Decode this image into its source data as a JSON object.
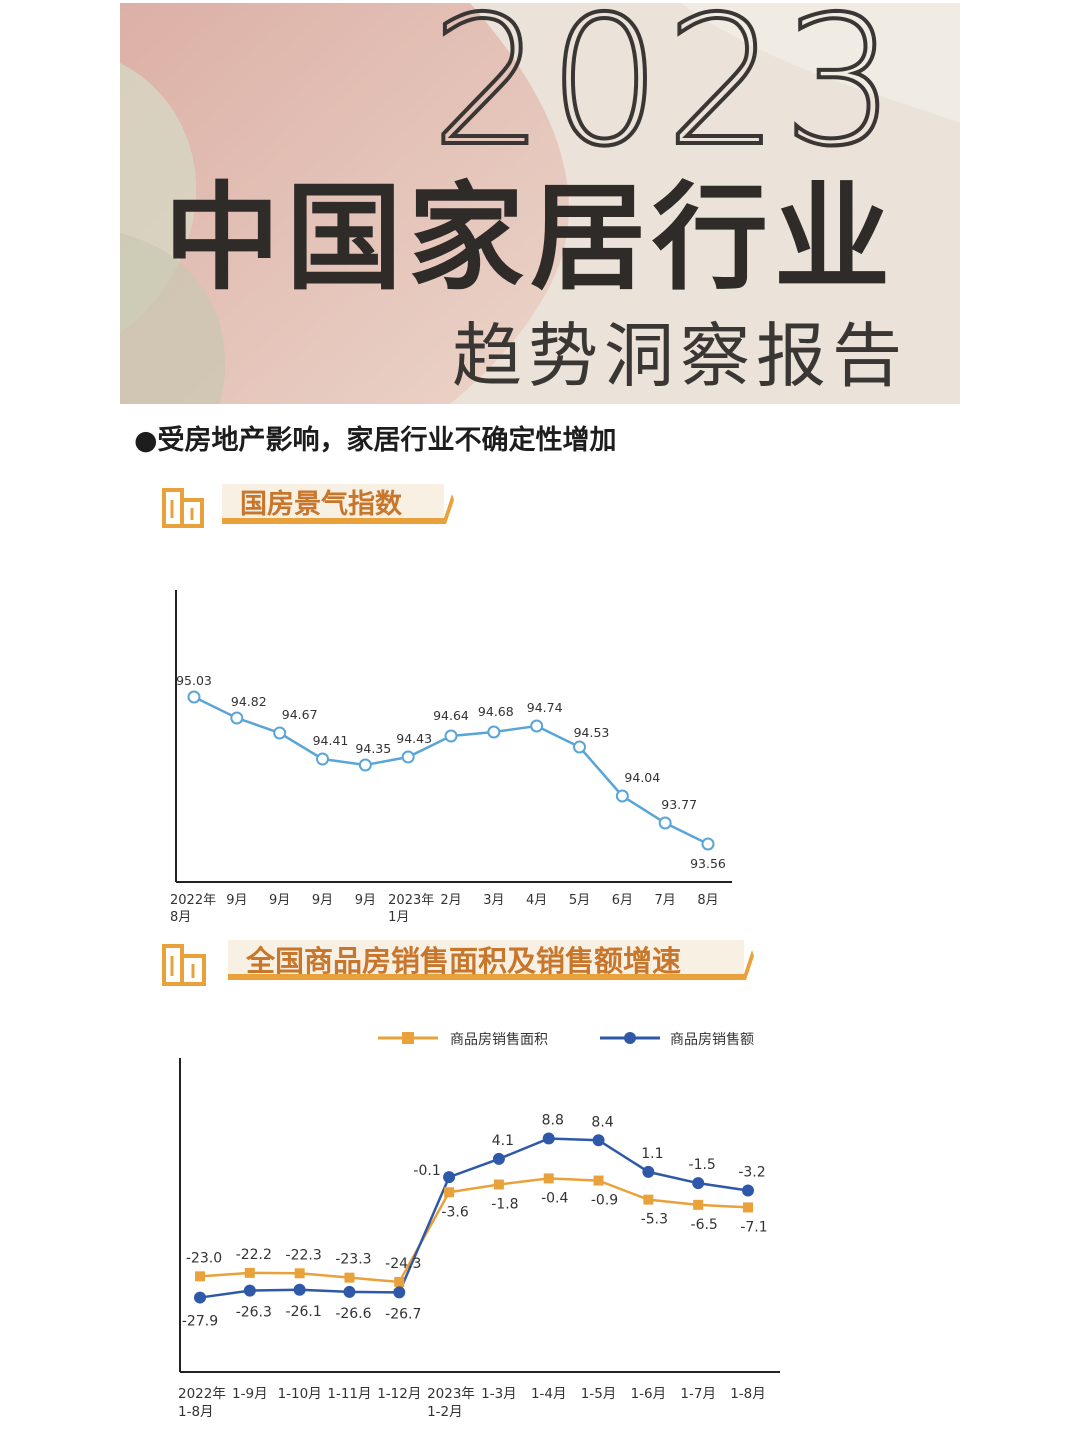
{
  "banner": {
    "year": "2023",
    "title": "中国家居行业",
    "subtitle": "趋势洞察报告"
  },
  "headline": "●受房地产影响，家居行业不确定性增加",
  "section1": {
    "title": "国房景气指数"
  },
  "section2": {
    "title": "全国商品房销售面积及销售额增速"
  },
  "colors": {
    "line1": "#5aa5d8",
    "area": "#e9a23b",
    "sales": "#2f58a8",
    "accent": "#c8762b"
  },
  "chart_data": [
    {
      "type": "line",
      "title": "国房景气指数",
      "categories": [
        [
          "2022年",
          "8月"
        ],
        [
          "9月"
        ],
        [
          "9月"
        ],
        [
          "9月"
        ],
        [
          "9月"
        ],
        [
          "2023年",
          "1月"
        ],
        [
          "2月"
        ],
        [
          "3月"
        ],
        [
          "4月"
        ],
        [
          "5月"
        ],
        [
          "6月"
        ],
        [
          "7月"
        ],
        [
          "8月"
        ]
      ],
      "series": [
        {
          "values": [
            95.03,
            94.82,
            94.67,
            94.41,
            94.35,
            94.43,
            94.64,
            94.68,
            94.74,
            94.53,
            94.04,
            93.77,
            93.56
          ]
        }
      ],
      "ylim": [
        93.2,
        95.6
      ],
      "grid": false,
      "data_labels": [
        "95.03",
        "94.82",
        "94.67",
        "94.41",
        "94.35",
        "94.43",
        "94.64",
        "94.68",
        "94.74",
        "94.53",
        "94.04",
        "93.77",
        "93.56"
      ]
    },
    {
      "type": "line",
      "title": "全国商品房销售面积及销售额增速",
      "categories": [
        [
          "2022年",
          "1-8月"
        ],
        [
          "1-9月"
        ],
        [
          "1-10月"
        ],
        [
          "1-11月"
        ],
        [
          "1-12月"
        ],
        [
          "2023年",
          "1-2月"
        ],
        [
          "1-3月"
        ],
        [
          "1-4月"
        ],
        [
          "1-5月"
        ],
        [
          "1-6月"
        ],
        [
          "1-7月"
        ],
        [
          "1-8月"
        ]
      ],
      "series": [
        {
          "name": "商品房销售面积",
          "values": [
            -23.0,
            -22.2,
            -22.3,
            -23.3,
            -24.3,
            -3.6,
            -1.8,
            -0.4,
            -0.9,
            -5.3,
            -6.5,
            -7.1
          ],
          "labels": [
            "-23.0",
            "-22.2",
            "-22.3",
            "-23.3",
            "-24.3",
            "-3.6",
            "-1.8",
            "-0.4",
            "-0.9",
            "-5.3",
            "-6.5",
            "-7.1"
          ]
        },
        {
          "name": "商品房销售额",
          "values": [
            -27.9,
            -26.3,
            -26.1,
            -26.6,
            -26.7,
            -0.1,
            4.1,
            8.8,
            8.4,
            1.1,
            -1.5,
            -3.2
          ],
          "labels": [
            "-27.9",
            "-26.3",
            "-26.1",
            "-26.6",
            "-26.7",
            "-0.1",
            "4.1",
            "8.8",
            "8.4",
            "1.1",
            "-1.5",
            "-3.2"
          ]
        }
      ],
      "ylim": [
        -40,
        20
      ],
      "legend": "top-right",
      "grid": false
    }
  ]
}
